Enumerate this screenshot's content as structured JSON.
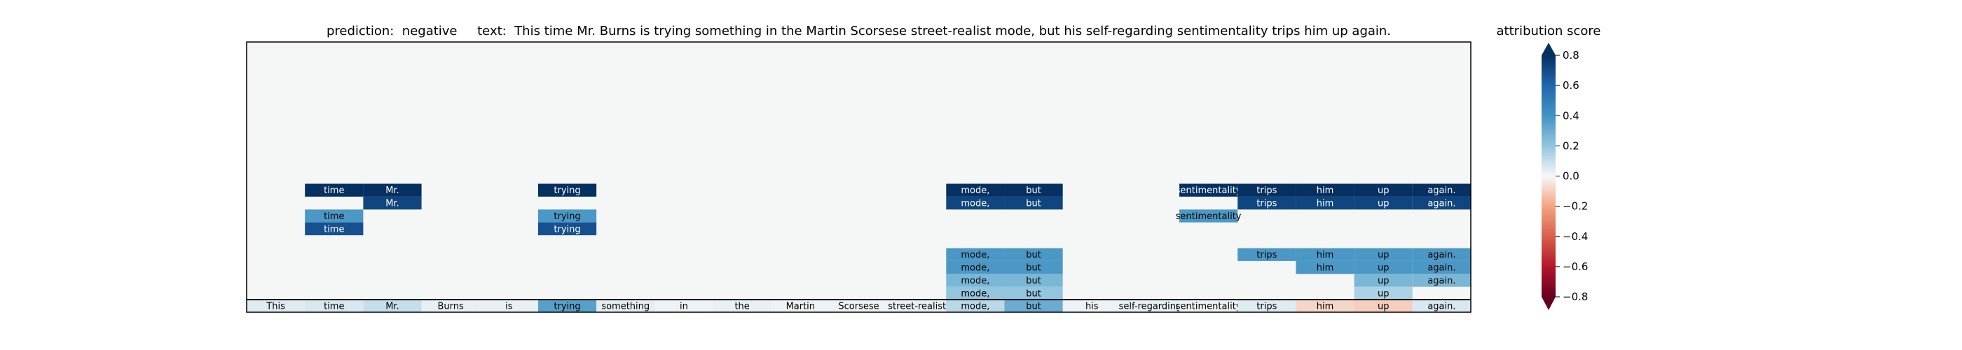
{
  "chart_data": {
    "type": "heatmap",
    "title": {
      "prediction_label": "prediction:",
      "prediction": "negative",
      "text_label": "text:",
      "text": "This time Mr. Burns is trying something in the Martin Scorsese street-realist mode, but his self-regarding sentimentality trips him up again."
    },
    "tokens": [
      "This",
      "time",
      "Mr.",
      "Burns",
      "is",
      "trying",
      "something",
      "in",
      "the",
      "Martin",
      "Scorsese",
      "street-realist",
      "mode,",
      "but",
      "his",
      "self-regarding",
      "sentimentality",
      "trips",
      "him",
      "up",
      "again."
    ],
    "base_row": [
      0.05,
      0.06,
      0.1,
      0.03,
      0.03,
      0.35,
      0.04,
      0.02,
      0.03,
      0.02,
      0.02,
      0.03,
      0.12,
      0.3,
      0.02,
      0.03,
      0.02,
      0.05,
      -0.08,
      -0.1,
      0.06
    ],
    "rows": [
      {
        "cells": [
          [
            1,
            0.95
          ],
          [
            2,
            0.95
          ],
          [
            5,
            0.95
          ],
          [
            12,
            0.95
          ],
          [
            13,
            0.95
          ],
          [
            16,
            0.95
          ],
          [
            17,
            0.95
          ],
          [
            18,
            0.95
          ],
          [
            19,
            0.95
          ],
          [
            20,
            0.95
          ]
        ]
      },
      {
        "cells": [
          [
            2,
            0.72
          ],
          [
            12,
            0.72
          ],
          [
            13,
            0.72
          ],
          [
            17,
            0.72
          ],
          [
            18,
            0.72
          ],
          [
            19,
            0.72
          ],
          [
            20,
            0.72
          ]
        ]
      },
      {
        "cells": [
          [
            1,
            0.38
          ],
          [
            5,
            0.38
          ],
          [
            16,
            0.38
          ]
        ]
      },
      {
        "cells": [
          [
            1,
            0.68
          ],
          [
            5,
            0.68
          ]
        ]
      },
      {
        "cells": []
      },
      {
        "cells": [
          [
            12,
            0.38
          ],
          [
            13,
            0.38
          ],
          [
            17,
            0.38
          ],
          [
            18,
            0.38
          ],
          [
            19,
            0.38
          ],
          [
            20,
            0.38
          ]
        ]
      },
      {
        "cells": [
          [
            12,
            0.38
          ],
          [
            13,
            0.38
          ],
          [
            18,
            0.38
          ],
          [
            19,
            0.38
          ],
          [
            20,
            0.38
          ]
        ]
      },
      {
        "cells": [
          [
            12,
            0.26
          ],
          [
            13,
            0.26
          ],
          [
            19,
            0.26
          ],
          [
            20,
            0.26
          ]
        ]
      },
      {
        "cells": [
          [
            12,
            0.2
          ],
          [
            13,
            0.2
          ],
          [
            19,
            0.15
          ]
        ]
      },
      {
        "cells": [
          [
            12,
            0.45
          ],
          [
            13,
            0.45
          ]
        ]
      }
    ],
    "colorbar": {
      "label": "attribution score",
      "min": -0.8,
      "max": 0.8,
      "ticks": [
        0.8,
        0.6,
        0.4,
        0.2,
        0.0,
        -0.2,
        -0.4,
        -0.6,
        -0.8
      ],
      "tick_labels": [
        "0.8",
        "0.6",
        "0.4",
        "0.2",
        "0.0",
        "−0.2",
        "−0.4",
        "−0.6",
        "−0.8"
      ],
      "colormap": "RdBu",
      "extend": "both"
    },
    "background_color": "#f5f6f6"
  }
}
